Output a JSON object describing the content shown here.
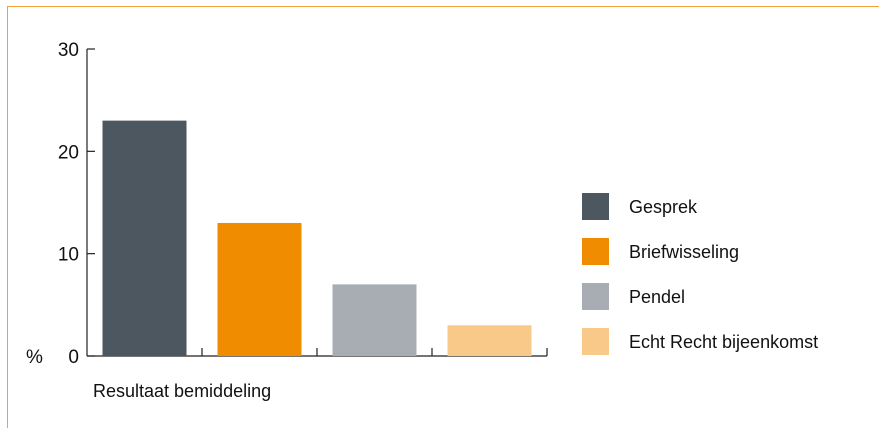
{
  "chart_data": {
    "type": "bar",
    "categories": [
      "Gesprek",
      "Briefwisseling",
      "Pendel",
      "Echt Recht bijeenkomst"
    ],
    "values": [
      23,
      13,
      7,
      3
    ],
    "colors": [
      "#4d5760",
      "#f08c00",
      "#a8adb3",
      "#f9c98a"
    ],
    "xlabel": "Resultaat bemiddeling",
    "ylabel": "%",
    "ylim": [
      0,
      30
    ],
    "yticks": [
      {
        "value": 0,
        "label": "0"
      },
      {
        "value": 10,
        "label": "10"
      },
      {
        "value": 20,
        "label": "20"
      },
      {
        "value": 30,
        "label": "30"
      }
    ],
    "legend_position": "right",
    "grid": false
  }
}
